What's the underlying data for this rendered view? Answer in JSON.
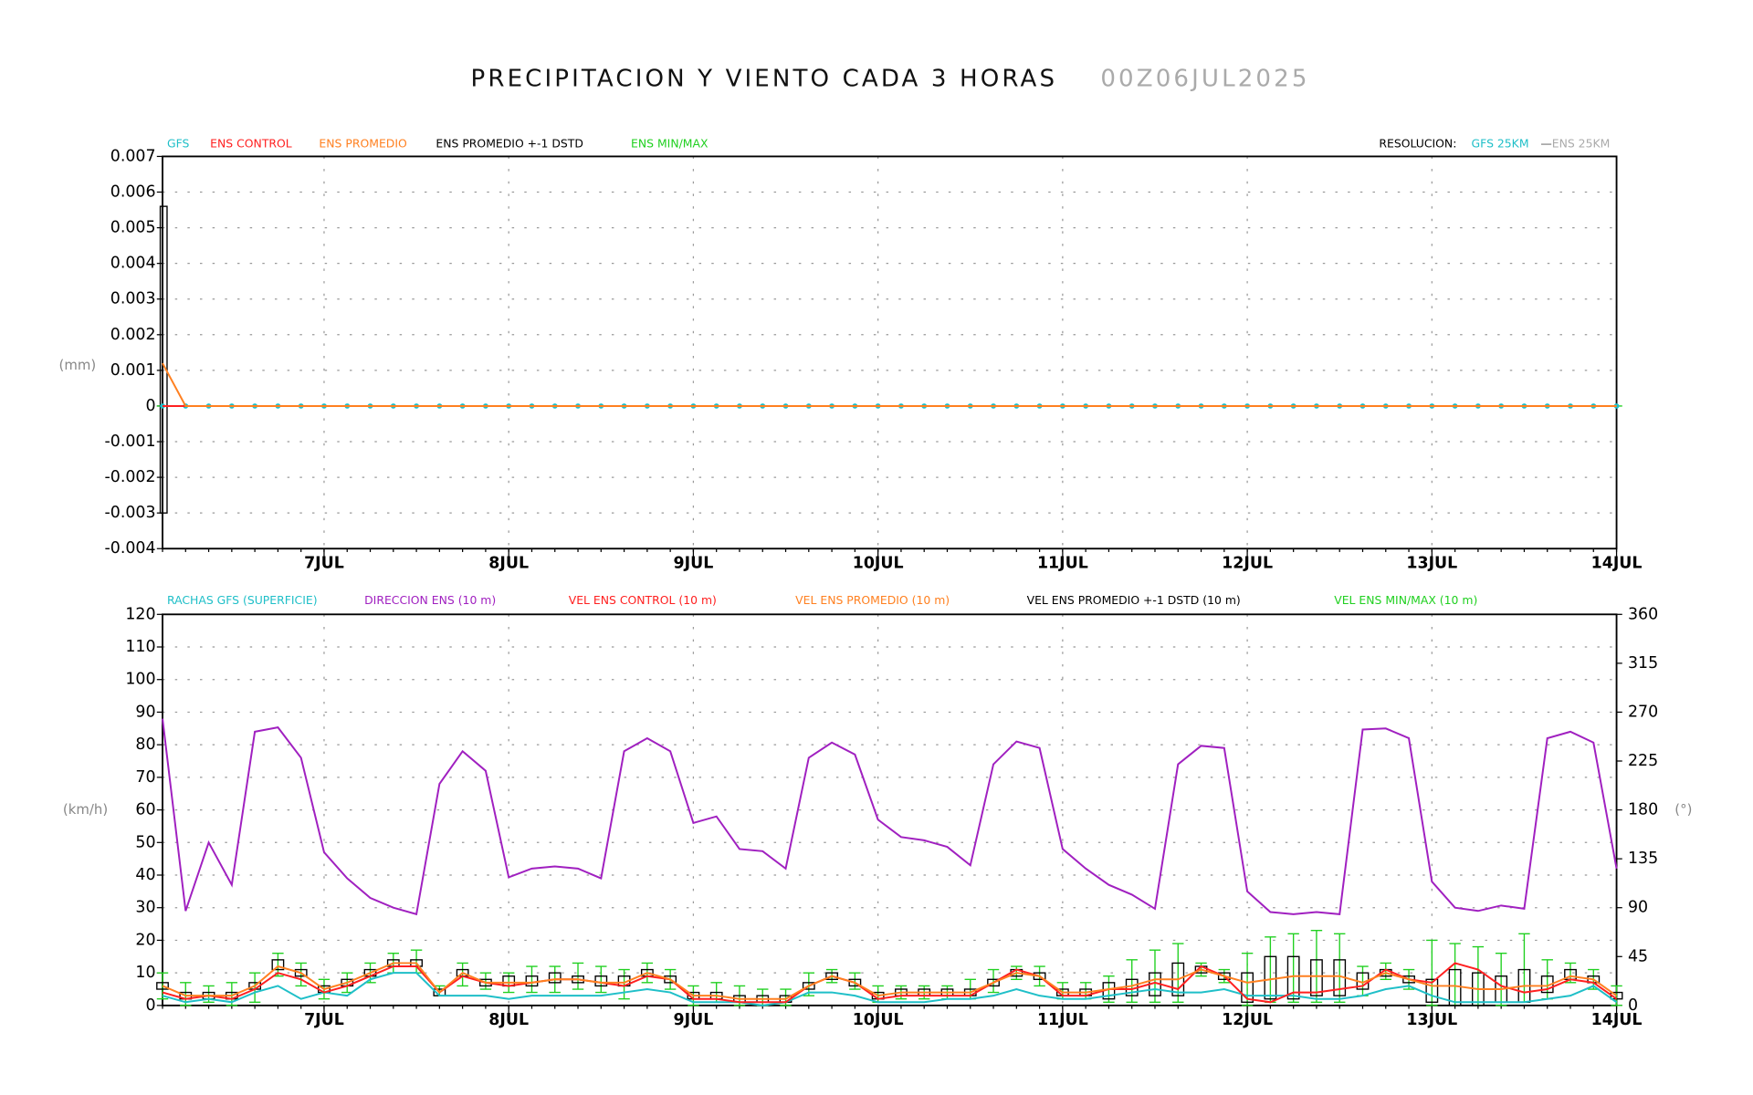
{
  "header": {
    "title": "PRECIPITACION Y VIENTO CADA 3 HORAS",
    "date": "00Z06JUL2025",
    "resolution": "RESOLUCION:",
    "res_gfs": "GFS 25KM",
    "res_sep": "—",
    "res_ens": "ENS 25KM"
  },
  "chart_data": [
    {
      "type": "line",
      "ylabel": "(mm)",
      "grid": true,
      "categories": [
        null,
        null,
        null,
        null,
        null,
        null,
        null,
        "7JUL",
        null,
        null,
        null,
        null,
        null,
        null,
        null,
        "8JUL",
        null,
        null,
        null,
        null,
        null,
        null,
        null,
        "9JUL",
        null,
        null,
        null,
        null,
        null,
        null,
        null,
        "10JUL",
        null,
        null,
        null,
        null,
        null,
        null,
        null,
        "11JUL",
        null,
        null,
        null,
        null,
        null,
        null,
        null,
        "12JUL",
        null,
        null,
        null,
        null,
        null,
        null,
        null,
        "13JUL",
        null,
        null,
        null,
        null,
        null,
        null,
        null,
        "14JUL"
      ],
      "ylim": [
        -0.004,
        0.007
      ],
      "yticks": [
        -0.004,
        -0.003,
        -0.002,
        -0.001,
        0,
        0.001,
        0.002,
        0.003,
        0.004,
        0.005,
        0.006,
        0.007
      ],
      "series": [
        {
          "name": "GFS",
          "color": "#1fbfc8",
          "type": "line",
          "markers": true,
          "values": [
            0,
            0,
            0,
            0,
            0,
            0,
            0,
            0,
            0,
            0,
            0,
            0,
            0,
            0,
            0,
            0,
            0,
            0,
            0,
            0,
            0,
            0,
            0,
            0,
            0,
            0,
            0,
            0,
            0,
            0,
            0,
            0,
            0,
            0,
            0,
            0,
            0,
            0,
            0,
            0,
            0,
            0,
            0,
            0,
            0,
            0,
            0,
            0,
            0,
            0,
            0,
            0,
            0,
            0,
            0,
            0,
            0,
            0,
            0,
            0,
            0,
            0,
            0,
            0
          ]
        },
        {
          "name": "ENS CONTROL",
          "color": "#ff2020",
          "type": "line",
          "values": [
            0,
            0,
            0,
            0,
            0,
            0,
            0,
            0,
            0,
            0,
            0,
            0,
            0,
            0,
            0,
            0,
            0,
            0,
            0,
            0,
            0,
            0,
            0,
            0,
            0,
            0,
            0,
            0,
            0,
            0,
            0,
            0,
            0,
            0,
            0,
            0,
            0,
            0,
            0,
            0,
            0,
            0,
            0,
            0,
            0,
            0,
            0,
            0,
            0,
            0,
            0,
            0,
            0,
            0,
            0,
            0,
            0,
            0,
            0,
            0,
            0,
            0,
            0,
            0
          ]
        },
        {
          "name": "ENS PROMEDIO",
          "color": "#ff8020",
          "type": "line",
          "values": [
            0.0012,
            0,
            0,
            0,
            0,
            0,
            0,
            0,
            0,
            0,
            0,
            0,
            0,
            0,
            0,
            0,
            0,
            0,
            0,
            0,
            0,
            0,
            0,
            0,
            0,
            0,
            0,
            0,
            0,
            0,
            0,
            0,
            0,
            0,
            0,
            0,
            0,
            0,
            0,
            0,
            0,
            0,
            0,
            0,
            0,
            0,
            0,
            0,
            0,
            0,
            0,
            0,
            0,
            0,
            0,
            0,
            0,
            0,
            0,
            0,
            0,
            0,
            0,
            0
          ]
        },
        {
          "name": "ENS PROMEDIO +-1 DSTD",
          "color": "#000000",
          "type": "box",
          "low": [
            -0.003,
            null,
            null,
            null,
            null,
            null,
            null,
            null,
            null,
            null,
            null,
            null,
            null,
            null,
            null,
            null,
            null,
            null,
            null,
            null,
            null,
            null,
            null,
            null,
            null,
            null,
            null,
            null,
            null,
            null,
            null,
            null,
            null,
            null,
            null,
            null,
            null,
            null,
            null,
            null,
            null,
            null,
            null,
            null,
            null,
            null,
            null,
            null,
            null,
            null,
            null,
            null,
            null,
            null,
            null,
            null,
            null,
            null,
            null,
            null,
            null,
            null,
            null,
            null
          ],
          "high": [
            0.0056,
            null,
            null,
            null,
            null,
            null,
            null,
            null,
            null,
            null,
            null,
            null,
            null,
            null,
            null,
            null,
            null,
            null,
            null,
            null,
            null,
            null,
            null,
            null,
            null,
            null,
            null,
            null,
            null,
            null,
            null,
            null,
            null,
            null,
            null,
            null,
            null,
            null,
            null,
            null,
            null,
            null,
            null,
            null,
            null,
            null,
            null,
            null,
            null,
            null,
            null,
            null,
            null,
            null,
            null,
            null,
            null,
            null,
            null,
            null,
            null,
            null,
            null,
            null
          ]
        },
        {
          "name": "ENS MIN/MAX",
          "color": "#20d020",
          "type": "whisker",
          "low": [
            0,
            0,
            0,
            0,
            0,
            0,
            0,
            0,
            0,
            0,
            0,
            0,
            0,
            0,
            0,
            0,
            0,
            0,
            0,
            0,
            0,
            0,
            0,
            0,
            0,
            0,
            0,
            0,
            0,
            0,
            0,
            0,
            0,
            0,
            0,
            0,
            0,
            0,
            0,
            0,
            0,
            0,
            0,
            0,
            0,
            0,
            0,
            0,
            0,
            0,
            0,
            0,
            0,
            0,
            0,
            0,
            0,
            0,
            0,
            0,
            0,
            0,
            0,
            0
          ],
          "high": [
            0,
            0,
            0,
            0,
            0,
            0,
            0,
            0,
            0,
            0,
            0,
            0,
            0,
            0,
            0,
            0,
            0,
            0,
            0,
            0,
            0,
            0,
            0,
            0,
            0,
            0,
            0,
            0,
            0,
            0,
            0,
            0,
            0,
            0,
            0,
            0,
            0,
            0,
            0,
            0,
            0,
            0,
            0,
            0,
            0,
            0,
            0,
            0,
            0,
            0,
            0,
            0,
            0,
            0,
            0,
            0,
            0,
            0,
            0,
            0,
            0,
            0,
            0,
            0
          ]
        }
      ]
    },
    {
      "type": "line",
      "ylabel": "(km/h)",
      "y2label": "(°)",
      "grid": true,
      "categories": [
        null,
        null,
        null,
        null,
        null,
        null,
        null,
        "7JUL",
        null,
        null,
        null,
        null,
        null,
        null,
        null,
        "8JUL",
        null,
        null,
        null,
        null,
        null,
        null,
        null,
        "9JUL",
        null,
        null,
        null,
        null,
        null,
        null,
        null,
        "10JUL",
        null,
        null,
        null,
        null,
        null,
        null,
        null,
        "11JUL",
        null,
        null,
        null,
        null,
        null,
        null,
        null,
        "12JUL",
        null,
        null,
        null,
        null,
        null,
        null,
        null,
        "13JUL",
        null,
        null,
        null,
        null,
        null,
        null,
        null,
        "14JUL"
      ],
      "ylim": [
        0,
        120
      ],
      "yticks": [
        0,
        10,
        20,
        30,
        40,
        50,
        60,
        70,
        80,
        90,
        100,
        110,
        120
      ],
      "y2lim": [
        0,
        360
      ],
      "y2ticks": [
        0,
        45,
        90,
        135,
        180,
        225,
        270,
        315,
        360
      ],
      "series": [
        {
          "name": "RACHAS GFS (SUPERFICIE)",
          "color": "#1fbfc8",
          "type": "line",
          "values": [
            3,
            1,
            2,
            1,
            4,
            6,
            2,
            4,
            3,
            8,
            10,
            10,
            3,
            3,
            3,
            2,
            3,
            3,
            3,
            3,
            4,
            5,
            4,
            1,
            1,
            1,
            0,
            1,
            4,
            4,
            3,
            1,
            1,
            1,
            2,
            2,
            3,
            5,
            3,
            2,
            2,
            3,
            4,
            5,
            4,
            4,
            5,
            3,
            3,
            3,
            2,
            2,
            3,
            5,
            6,
            3,
            1,
            1,
            1,
            1,
            2,
            3,
            6,
            1
          ]
        },
        {
          "name": "DIRECCION ENS (10 m)",
          "color": "#a020c0",
          "type": "line",
          "axis": "y2",
          "values": [
            264,
            87,
            150,
            111,
            252,
            256,
            228,
            141,
            117,
            99,
            90,
            84,
            204,
            234,
            216,
            118,
            126,
            128,
            126,
            117,
            234,
            246,
            234,
            168,
            174,
            144,
            142,
            126,
            228,
            242,
            231,
            171,
            155,
            152,
            146,
            129,
            222,
            243,
            237,
            144,
            126,
            111,
            102,
            89,
            222,
            239,
            237,
            105,
            86,
            84,
            86,
            84,
            254,
            255,
            246,
            114,
            90,
            87,
            92,
            89,
            246,
            252,
            242,
            126
          ]
        },
        {
          "name": "VEL ENS CONTROL (10 m)",
          "color": "#ff2020",
          "type": "line",
          "values": [
            4,
            2,
            3,
            2,
            5,
            10,
            8,
            4,
            6,
            9,
            12,
            12,
            4,
            9,
            7,
            6,
            7,
            8,
            8,
            7,
            6,
            9,
            8,
            2,
            2,
            1,
            1,
            1,
            6,
            9,
            7,
            2,
            3,
            3,
            3,
            3,
            7,
            11,
            9,
            3,
            3,
            5,
            5,
            7,
            5,
            12,
            9,
            2,
            1,
            4,
            4,
            5,
            6,
            11,
            8,
            7,
            13,
            11,
            6,
            4,
            5,
            8,
            7,
            2
          ]
        },
        {
          "name": "VEL ENS PROMEDIO (10 m)",
          "color": "#ff8020",
          "type": "line",
          "values": [
            6,
            3,
            3,
            3,
            6,
            12,
            10,
            5,
            7,
            10,
            13,
            13,
            4,
            10,
            7,
            7,
            7,
            8,
            8,
            7,
            7,
            10,
            8,
            3,
            3,
            2,
            2,
            2,
            6,
            9,
            7,
            3,
            4,
            4,
            4,
            4,
            7,
            10,
            9,
            4,
            4,
            5,
            6,
            8,
            8,
            11,
            9,
            7,
            8,
            9,
            9,
            9,
            7,
            10,
            8,
            6,
            6,
            5,
            5,
            6,
            6,
            9,
            8,
            3
          ]
        },
        {
          "name": "VEL ENS PROMEDIO +-1 DSTD (10 m)",
          "color": "#000000",
          "type": "box",
          "low": [
            5,
            2,
            2,
            2,
            5,
            11,
            9,
            4,
            6,
            9,
            12,
            12,
            3,
            9,
            6,
            6,
            6,
            7,
            7,
            6,
            6,
            9,
            7,
            2,
            2,
            1,
            1,
            1,
            5,
            8,
            6,
            2,
            3,
            3,
            3,
            3,
            6,
            9,
            8,
            3,
            3,
            2,
            3,
            3,
            3,
            10,
            8,
            1,
            2,
            2,
            3,
            3,
            5,
            9,
            7,
            1,
            0,
            0,
            1,
            1,
            4,
            8,
            7,
            2
          ],
          "high": [
            7,
            4,
            4,
            4,
            7,
            14,
            11,
            6,
            8,
            11,
            14,
            14,
            5,
            11,
            8,
            9,
            9,
            10,
            9,
            9,
            9,
            11,
            9,
            4,
            4,
            3,
            3,
            3,
            7,
            10,
            8,
            4,
            5,
            5,
            5,
            5,
            8,
            11,
            10,
            5,
            5,
            7,
            8,
            10,
            13,
            12,
            10,
            10,
            15,
            15,
            14,
            14,
            10,
            11,
            9,
            8,
            11,
            10,
            9,
            11,
            9,
            11,
            9,
            4
          ]
        },
        {
          "name": "VEL ENS MIN/MAX (10 m)",
          "color": "#20d020",
          "type": "whisker",
          "low": [
            2,
            0,
            1,
            0,
            1,
            9,
            6,
            2,
            4,
            7,
            10,
            10,
            3,
            6,
            5,
            4,
            4,
            4,
            5,
            4,
            2,
            7,
            5,
            0,
            1,
            0,
            0,
            0,
            3,
            7,
            5,
            1,
            2,
            2,
            2,
            2,
            4,
            8,
            6,
            2,
            2,
            1,
            1,
            1,
            1,
            9,
            7,
            0,
            1,
            1,
            1,
            1,
            3,
            8,
            5,
            0,
            0,
            0,
            0,
            1,
            2,
            7,
            5,
            0
          ],
          "high": [
            10,
            7,
            6,
            7,
            10,
            16,
            13,
            8,
            10,
            13,
            16,
            17,
            6,
            13,
            10,
            10,
            12,
            12,
            13,
            12,
            11,
            13,
            11,
            6,
            7,
            6,
            5,
            5,
            10,
            11,
            10,
            6,
            6,
            6,
            6,
            8,
            11,
            12,
            12,
            7,
            7,
            9,
            14,
            17,
            19,
            13,
            11,
            16,
            21,
            22,
            23,
            22,
            12,
            13,
            11,
            20,
            19,
            18,
            16,
            22,
            14,
            13,
            11,
            6
          ]
        }
      ]
    }
  ]
}
